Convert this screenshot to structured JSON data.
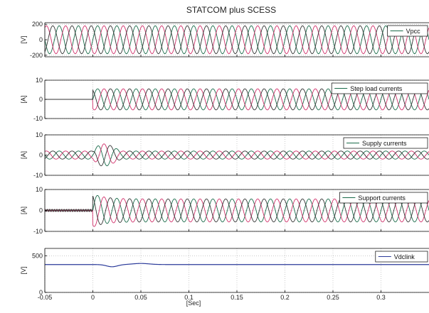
{
  "figure": {
    "title": "STATCOM plus SCESS",
    "xlabel": "[Sec]",
    "xlim": [
      -0.05,
      0.35
    ],
    "xticks": [
      -0.05,
      0,
      0.05,
      0.1,
      0.15,
      0.2,
      0.25,
      0.3
    ],
    "xtick_labels": [
      "-0.05",
      "0",
      "0.05",
      "0.1",
      "0.15",
      "0.2",
      "0.25",
      "0.3"
    ],
    "grid": true,
    "colors": {
      "phase_a": "#1a6b4a",
      "phase_b": "#d0306a",
      "phase_c": "#333333",
      "dc": "#2a3a9a",
      "axes": "#000000",
      "grid": "#9a9a9a"
    }
  },
  "chart_data": [
    {
      "type": "line",
      "ylabel": "[V]",
      "ylim": [
        -220,
        220
      ],
      "yticks": [
        200,
        0,
        -200
      ],
      "ytick_labels": [
        "200",
        "0",
        "-200"
      ],
      "legend": {
        "label": "Vpcc",
        "placement": "top-right"
      },
      "series": [
        {
          "phase": "a",
          "t_start": -0.05,
          "t_end": 0.35,
          "frequency_hz": 50,
          "amplitude": 180
        }
      ]
    },
    {
      "type": "line",
      "ylabel": "[A]",
      "ylim": [
        -10,
        10
      ],
      "yticks": [
        10,
        0,
        -10
      ],
      "ytick_labels": [
        "10",
        "0",
        "-10"
      ],
      "legend": {
        "label": "Step load currents",
        "placement": "top-right"
      },
      "series": [
        {
          "phase": "a",
          "before_step": 0,
          "step_time": 0,
          "frequency_hz": 50,
          "amplitude": 5.5
        }
      ]
    },
    {
      "type": "line",
      "ylabel": "[A]",
      "ylim": [
        -10,
        10
      ],
      "yticks": [
        10,
        0,
        -10
      ],
      "ytick_labels": [
        "10",
        "0",
        "-10"
      ],
      "legend": {
        "label": "Supply currents",
        "placement": "top-right"
      },
      "series": [
        {
          "phase": "a",
          "steady_amplitude": 2,
          "transient_peak": 8,
          "transient_start": 0,
          "transient_end": 0.03,
          "frequency_hz": 50
        }
      ]
    },
    {
      "type": "line",
      "ylabel": "[A]",
      "ylim": [
        -10,
        10
      ],
      "yticks": [
        10,
        0,
        -10
      ],
      "ytick_labels": [
        "10",
        "0",
        "-10"
      ],
      "legend": {
        "label": "Support currents",
        "placement": "top-right"
      },
      "series": [
        {
          "phase": "a",
          "before_step": 0.5,
          "step_time": 0,
          "amplitude": 5.5,
          "overshoot": 8,
          "frequency_hz": 50
        }
      ]
    },
    {
      "type": "line",
      "ylabel": "[V]",
      "ylim": [
        0,
        600
      ],
      "yticks": [
        500,
        0
      ],
      "ytick_labels": [
        "500",
        "0"
      ],
      "legend": {
        "label": "Vdclink",
        "placement": "top-right"
      },
      "series": [
        {
          "name": "Vdclink",
          "steady_value": 380,
          "dip_value": 350,
          "dip_time": 0.02,
          "bump_value": 395,
          "bump_time": 0.05
        }
      ]
    }
  ]
}
